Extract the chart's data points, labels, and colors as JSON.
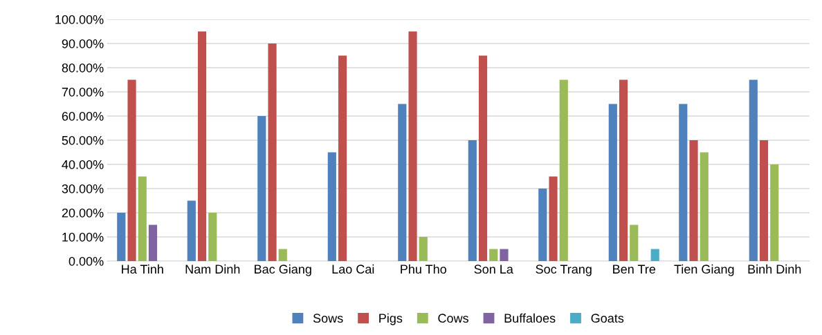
{
  "chart_data": {
    "type": "bar",
    "categories": [
      "Ha Tinh",
      "Nam Dinh",
      "Bac Giang",
      "Lao Cai",
      "Phu Tho",
      "Son La",
      "Soc Trang",
      "Ben Tre",
      "Tien Giang",
      "Binh Dinh"
    ],
    "series": [
      {
        "name": "Sows",
        "color": "#4f81bd",
        "values": [
          20,
          25,
          60,
          45,
          65,
          50,
          30,
          65,
          65,
          75
        ]
      },
      {
        "name": "Pigs",
        "color": "#c0504d",
        "values": [
          75,
          95,
          90,
          85,
          95,
          85,
          35,
          75,
          50,
          50
        ]
      },
      {
        "name": "Cows",
        "color": "#9bbb59",
        "values": [
          35,
          20,
          5,
          0,
          10,
          5,
          75,
          15,
          45,
          40
        ]
      },
      {
        "name": "Buffaloes",
        "color": "#8064a2",
        "values": [
          15,
          0,
          0,
          0,
          0,
          5,
          0,
          0,
          0,
          0
        ]
      },
      {
        "name": "Goats",
        "color": "#4bacc6",
        "values": [
          0,
          0,
          0,
          0,
          0,
          0,
          0,
          5,
          0,
          0
        ]
      }
    ],
    "ylim": [
      0,
      100
    ],
    "yticks": [
      {
        "value": 0,
        "label": "0.00%"
      },
      {
        "value": 10,
        "label": "10.00%"
      },
      {
        "value": 20,
        "label": "20.00%"
      },
      {
        "value": 30,
        "label": "30.00%"
      },
      {
        "value": 40,
        "label": "40.00%"
      },
      {
        "value": 50,
        "label": "50.00%"
      },
      {
        "value": 60,
        "label": "60.00%"
      },
      {
        "value": 70,
        "label": "70.00%"
      },
      {
        "value": 80,
        "label": "80.00%"
      },
      {
        "value": 90,
        "label": "90.00%"
      },
      {
        "value": 100,
        "label": "100.00%"
      }
    ],
    "grid": "y",
    "legend": "bottom"
  }
}
